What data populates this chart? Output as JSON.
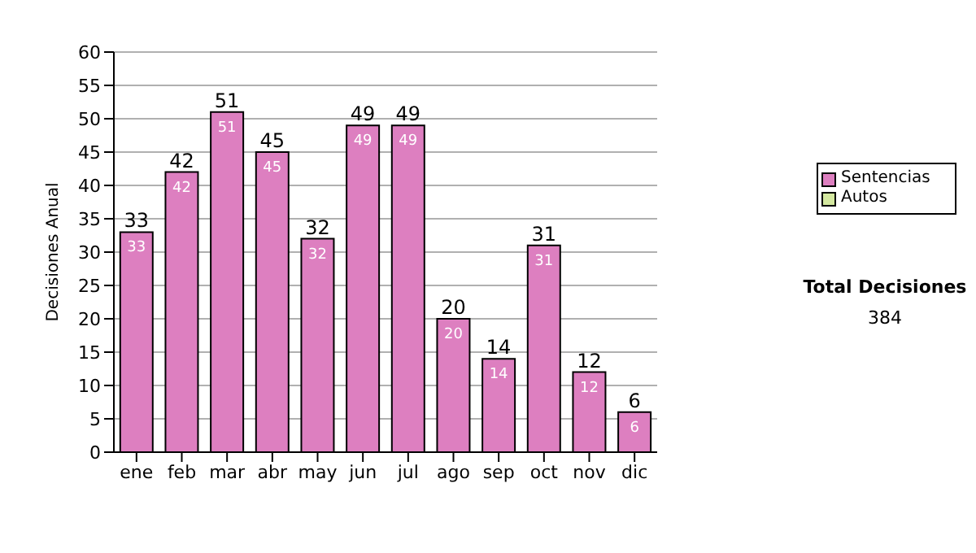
{
  "chart_data": {
    "type": "bar",
    "ylabel": "Decisiones Anual",
    "categories": [
      "ene",
      "feb",
      "mar",
      "abr",
      "may",
      "jun",
      "jul",
      "ago",
      "sep",
      "oct",
      "nov",
      "dic"
    ],
    "stacked": true,
    "series": [
      {
        "name": "Sentencias",
        "color": "#dd7fc0",
        "values": [
          33,
          42,
          51,
          45,
          32,
          49,
          49,
          20,
          14,
          31,
          12,
          6
        ],
        "value_labels": [
          "33",
          "42",
          "51",
          "45",
          "32",
          "49",
          "49",
          "20",
          "14",
          "31",
          "12",
          "6"
        ]
      },
      {
        "name": "Autos",
        "color": "#d4e8a0",
        "values": [
          0,
          0,
          0,
          0,
          0,
          0,
          0,
          0,
          0,
          0,
          0,
          0
        ]
      }
    ],
    "totals": [
      "33",
      "42",
      "51",
      "45",
      "32",
      "49",
      "49",
      "20",
      "14",
      "31",
      "12",
      "6"
    ],
    "ylim": [
      0,
      60
    ],
    "yticks": [
      0,
      5,
      10,
      15,
      20,
      25,
      30,
      35,
      40,
      45,
      50,
      55,
      60
    ],
    "grid": "y",
    "legend": "right",
    "annotations": [
      "Total Decisiones",
      "384"
    ]
  }
}
